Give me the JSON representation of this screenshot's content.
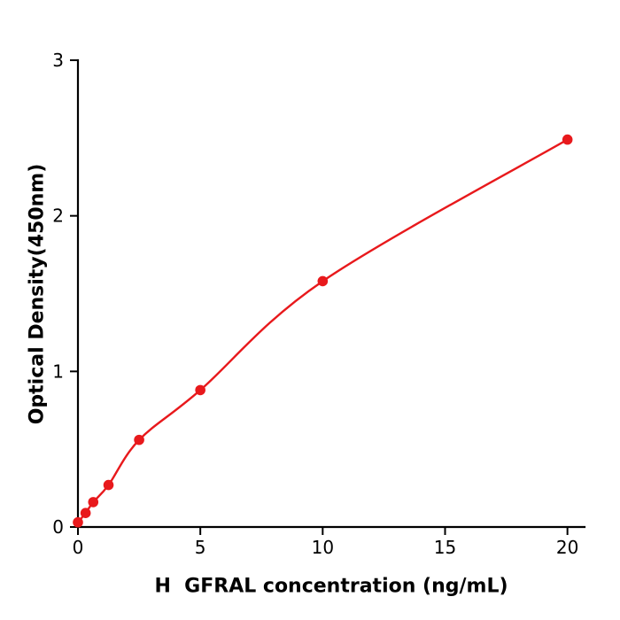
{
  "chart_data": {
    "type": "scatter",
    "title": "",
    "xlabel": "H  GFRAL concentration (ng/mL)",
    "ylabel": "Optical Density(450nm)",
    "x": [
      0,
      0.313,
      0.625,
      1.25,
      2.5,
      5,
      10,
      20
    ],
    "y": [
      0.03,
      0.09,
      0.16,
      0.27,
      0.56,
      0.88,
      1.58,
      2.49
    ],
    "xlim": [
      0,
      20.7
    ],
    "ylim": [
      0,
      3
    ],
    "x_ticks": [
      0,
      5,
      10,
      15,
      20
    ],
    "y_ticks": [
      0,
      1,
      2,
      3
    ],
    "grid": false,
    "legend": null,
    "curve": "smooth-fit",
    "marker": "circle",
    "point_color": "#e8191c",
    "line_color": "#e8191c",
    "axis_color": "#000000",
    "background": "#ffffff"
  }
}
